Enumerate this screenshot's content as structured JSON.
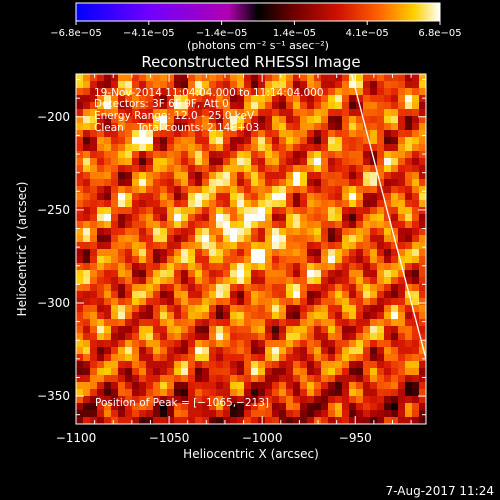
{
  "chart_data": {
    "type": "heatmap",
    "title": "Reconstructed RHESSI Image",
    "xlabel": "Heliocentric X (arcsec)",
    "ylabel": "Heliocentric Y (arcsec)",
    "xlim": [
      -1100,
      -912
    ],
    "ylim": [
      -365,
      -177
    ],
    "x_ticks": [
      -1100,
      -1050,
      -1000,
      -950
    ],
    "x_tick_labels": [
      "−1100",
      "−1050",
      "−1000",
      "−950"
    ],
    "y_ticks": [
      -200,
      -250,
      -300,
      -350
    ],
    "y_tick_labels": [
      "−200",
      "−250",
      "−300",
      "−350"
    ],
    "colorbar": {
      "tick_labels": [
        "−6.8e−05",
        "−4.1e−05",
        "−1.4e−05",
        "1.4e−05",
        "4.1e−05",
        "6.8e−05"
      ],
      "range": [
        -6.8e-05,
        6.8e-05
      ],
      "units": "(photons cm⁻² s⁻¹ asec⁻²)",
      "colormap": [
        "#0000ff",
        "#6a00ff",
        "#a000c0",
        "#000000",
        "#500000",
        "#a00000",
        "#e02000",
        "#ff7000",
        "#ffd000",
        "#ffffff"
      ]
    },
    "annotations": [
      "19-Nov-2014 11:04:04.000 to 11:14:04.000",
      "Detectors: 3F 6F 9F, Att 0",
      "Energy Range: 12.0 - 25.0 keV",
      "Clean    Total counts: 2.14E+03"
    ],
    "peak_label": "Position of Peak = [−1065,−213]",
    "peak": [
      -1065,
      -213
    ],
    "limb_line": [
      [
        -952,
        -177
      ],
      [
        -912,
        -330
      ]
    ],
    "grid": false
  },
  "footer": {
    "date": "7-Aug-2017 11:24"
  }
}
